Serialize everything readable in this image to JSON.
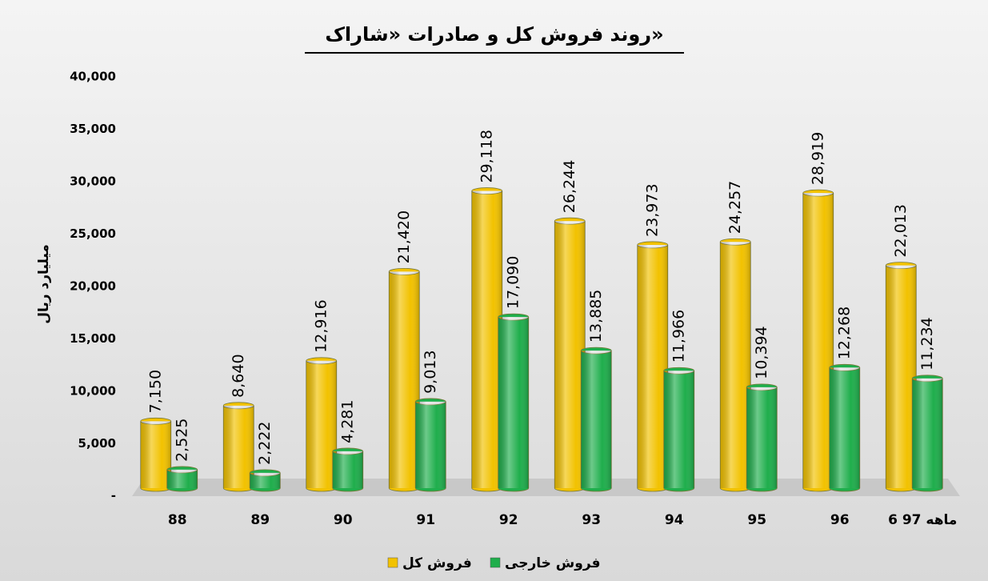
{
  "chart_data": {
    "type": "bar",
    "title": "روند فروش کل و صادرات «شاراک»",
    "y_label": "میلیارد ریال",
    "categories": [
      "88",
      "89",
      "90",
      "91",
      "92",
      "93",
      "94",
      "95",
      "96",
      "6 ماهه 97"
    ],
    "series": [
      {
        "name": "فروش کل",
        "color": "#f2c200",
        "values": [
          7150,
          8640,
          12916,
          21420,
          29118,
          26244,
          23973,
          24257,
          28919,
          22013
        ],
        "value_labels": [
          "7,150",
          "8,640",
          "12,916",
          "21,420",
          "29,118",
          "26,244",
          "23,973",
          "24,257",
          "28,919",
          "22,013"
        ]
      },
      {
        "name": "فروش خارجی",
        "color": "#1fae4c",
        "values": [
          2525,
          2222,
          4281,
          9013,
          17090,
          13885,
          11966,
          10394,
          12268,
          11234
        ],
        "value_labels": [
          "2,525",
          "2,222",
          "4,281",
          "9,013",
          "17,090",
          "13,885",
          "11,966",
          "10,394",
          "12,268",
          "11,234"
        ]
      }
    ],
    "ylim": [
      0,
      40000
    ],
    "yticks": [
      {
        "value": 0,
        "label": "-"
      },
      {
        "value": 5000,
        "label": "5,000"
      },
      {
        "value": 10000,
        "label": "10,000"
      },
      {
        "value": 15000,
        "label": "15,000"
      },
      {
        "value": 20000,
        "label": "20,000"
      },
      {
        "value": 25000,
        "label": "25,000"
      },
      {
        "value": 30000,
        "label": "30,000"
      },
      {
        "value": 35000,
        "label": "35,000"
      },
      {
        "value": 40000,
        "label": "40,000"
      }
    ]
  }
}
